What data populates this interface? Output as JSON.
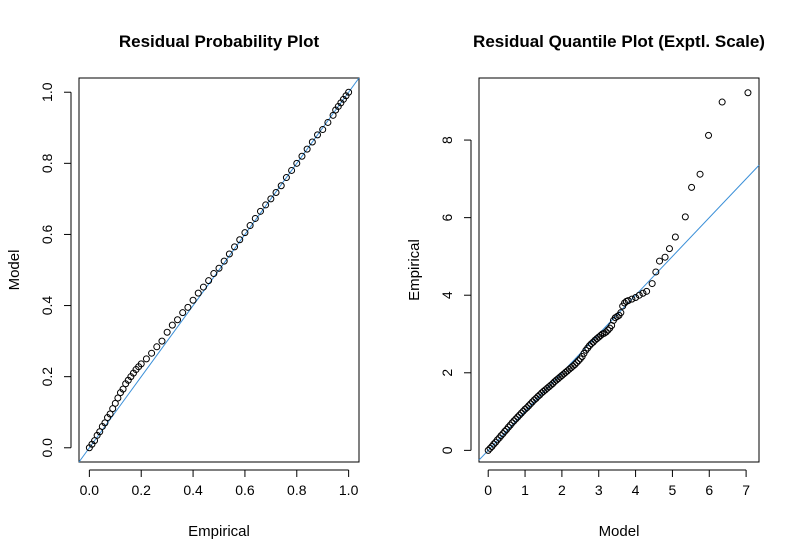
{
  "chart_data": [
    {
      "type": "scatter",
      "title": "Residual Probability Plot",
      "xlabel": "Empirical",
      "ylabel": "Model",
      "xlim": [
        -0.04,
        1.04
      ],
      "ylim": [
        -0.04,
        1.04
      ],
      "xticks": [
        "0.0",
        "0.2",
        "0.4",
        "0.6",
        "0.8",
        "1.0"
      ],
      "yticks": [
        "0.0",
        "0.2",
        "0.4",
        "0.6",
        "0.8",
        "1.0"
      ],
      "reference_line": {
        "intercept": 0,
        "slope": 1,
        "color": "#3a8fd8"
      },
      "points": [
        [
          0.0,
          0.0
        ],
        [
          0.01,
          0.01
        ],
        [
          0.02,
          0.02
        ],
        [
          0.03,
          0.035
        ],
        [
          0.04,
          0.045
        ],
        [
          0.05,
          0.06
        ],
        [
          0.06,
          0.07
        ],
        [
          0.07,
          0.085
        ],
        [
          0.08,
          0.095
        ],
        [
          0.09,
          0.11
        ],
        [
          0.1,
          0.125
        ],
        [
          0.11,
          0.14
        ],
        [
          0.12,
          0.155
        ],
        [
          0.13,
          0.165
        ],
        [
          0.14,
          0.18
        ],
        [
          0.15,
          0.19
        ],
        [
          0.16,
          0.2
        ],
        [
          0.17,
          0.21
        ],
        [
          0.18,
          0.22
        ],
        [
          0.19,
          0.228
        ],
        [
          0.2,
          0.236
        ],
        [
          0.22,
          0.25
        ],
        [
          0.24,
          0.266
        ],
        [
          0.26,
          0.284
        ],
        [
          0.28,
          0.3
        ],
        [
          0.3,
          0.325
        ],
        [
          0.32,
          0.345
        ],
        [
          0.34,
          0.36
        ],
        [
          0.36,
          0.38
        ],
        [
          0.38,
          0.395
        ],
        [
          0.4,
          0.415
        ],
        [
          0.42,
          0.435
        ],
        [
          0.44,
          0.452
        ],
        [
          0.46,
          0.47
        ],
        [
          0.48,
          0.49
        ],
        [
          0.5,
          0.505
        ],
        [
          0.52,
          0.525
        ],
        [
          0.54,
          0.545
        ],
        [
          0.56,
          0.565
        ],
        [
          0.58,
          0.585
        ],
        [
          0.6,
          0.605
        ],
        [
          0.62,
          0.625
        ],
        [
          0.64,
          0.645
        ],
        [
          0.66,
          0.665
        ],
        [
          0.68,
          0.683
        ],
        [
          0.7,
          0.7
        ],
        [
          0.72,
          0.718
        ],
        [
          0.74,
          0.737
        ],
        [
          0.76,
          0.76
        ],
        [
          0.78,
          0.78
        ],
        [
          0.8,
          0.8
        ],
        [
          0.82,
          0.82
        ],
        [
          0.84,
          0.84
        ],
        [
          0.86,
          0.86
        ],
        [
          0.88,
          0.88
        ],
        [
          0.9,
          0.895
        ],
        [
          0.92,
          0.915
        ],
        [
          0.94,
          0.935
        ],
        [
          0.95,
          0.95
        ],
        [
          0.96,
          0.96
        ],
        [
          0.97,
          0.97
        ],
        [
          0.98,
          0.98
        ],
        [
          0.99,
          0.99
        ],
        [
          1.0,
          1.0
        ]
      ]
    },
    {
      "type": "scatter",
      "title": "Residual Quantile Plot (Exptl. Scale)",
      "xlabel": "Model",
      "ylabel": "Empirical",
      "xlim": [
        -0.25,
        7.35
      ],
      "ylim": [
        -0.3,
        9.6
      ],
      "xticks": [
        "0",
        "1",
        "2",
        "3",
        "4",
        "5",
        "6",
        "7"
      ],
      "yticks": [
        "0",
        "2",
        "4",
        "6",
        "8"
      ],
      "reference_line": {
        "intercept": 0,
        "slope": 1,
        "color": "#3a8fd8"
      },
      "points": [
        [
          0.0,
          0.0
        ],
        [
          0.05,
          0.05
        ],
        [
          0.1,
          0.1
        ],
        [
          0.15,
          0.16
        ],
        [
          0.2,
          0.21
        ],
        [
          0.25,
          0.27
        ],
        [
          0.3,
          0.32
        ],
        [
          0.35,
          0.38
        ],
        [
          0.4,
          0.43
        ],
        [
          0.45,
          0.49
        ],
        [
          0.5,
          0.54
        ],
        [
          0.55,
          0.6
        ],
        [
          0.6,
          0.65
        ],
        [
          0.65,
          0.71
        ],
        [
          0.7,
          0.76
        ],
        [
          0.75,
          0.81
        ],
        [
          0.8,
          0.86
        ],
        [
          0.85,
          0.91
        ],
        [
          0.9,
          0.96
        ],
        [
          0.95,
          1.01
        ],
        [
          1.0,
          1.06
        ],
        [
          1.05,
          1.1
        ],
        [
          1.1,
          1.15
        ],
        [
          1.15,
          1.2
        ],
        [
          1.2,
          1.25
        ],
        [
          1.25,
          1.3
        ],
        [
          1.3,
          1.34
        ],
        [
          1.35,
          1.39
        ],
        [
          1.4,
          1.43
        ],
        [
          1.45,
          1.48
        ],
        [
          1.5,
          1.52
        ],
        [
          1.55,
          1.56
        ],
        [
          1.6,
          1.6
        ],
        [
          1.65,
          1.64
        ],
        [
          1.7,
          1.68
        ],
        [
          1.75,
          1.72
        ],
        [
          1.8,
          1.77
        ],
        [
          1.85,
          1.81
        ],
        [
          1.9,
          1.85
        ],
        [
          1.95,
          1.89
        ],
        [
          2.0,
          1.93
        ],
        [
          2.05,
          1.97
        ],
        [
          2.1,
          2.01
        ],
        [
          2.15,
          2.05
        ],
        [
          2.2,
          2.09
        ],
        [
          2.25,
          2.13
        ],
        [
          2.3,
          2.17
        ],
        [
          2.35,
          2.21
        ],
        [
          2.4,
          2.26
        ],
        [
          2.45,
          2.31
        ],
        [
          2.5,
          2.36
        ],
        [
          2.55,
          2.42
        ],
        [
          2.6,
          2.5
        ],
        [
          2.65,
          2.58
        ],
        [
          2.7,
          2.64
        ],
        [
          2.75,
          2.7
        ],
        [
          2.8,
          2.75
        ],
        [
          2.85,
          2.79
        ],
        [
          2.9,
          2.84
        ],
        [
          2.95,
          2.88
        ],
        [
          3.0,
          2.92
        ],
        [
          3.05,
          2.96
        ],
        [
          3.1,
          3.0
        ],
        [
          3.15,
          3.02
        ],
        [
          3.2,
          3.05
        ],
        [
          3.25,
          3.1
        ],
        [
          3.3,
          3.15
        ],
        [
          3.35,
          3.22
        ],
        [
          3.4,
          3.35
        ],
        [
          3.45,
          3.42
        ],
        [
          3.5,
          3.45
        ],
        [
          3.55,
          3.48
        ],
        [
          3.6,
          3.55
        ],
        [
          3.65,
          3.72
        ],
        [
          3.7,
          3.8
        ],
        [
          3.75,
          3.84
        ],
        [
          3.8,
          3.86
        ],
        [
          3.9,
          3.9
        ],
        [
          4.0,
          3.94
        ],
        [
          4.1,
          4.0
        ],
        [
          4.2,
          4.05
        ],
        [
          4.3,
          4.1
        ],
        [
          4.45,
          4.3
        ],
        [
          4.55,
          4.6
        ],
        [
          4.65,
          4.88
        ],
        [
          4.8,
          4.98
        ],
        [
          4.92,
          5.2
        ],
        [
          5.08,
          5.5
        ],
        [
          5.35,
          6.02
        ],
        [
          5.52,
          6.78
        ],
        [
          5.75,
          7.12
        ],
        [
          5.98,
          8.12
        ],
        [
          6.35,
          8.98
        ],
        [
          7.05,
          9.22
        ]
      ]
    }
  ]
}
